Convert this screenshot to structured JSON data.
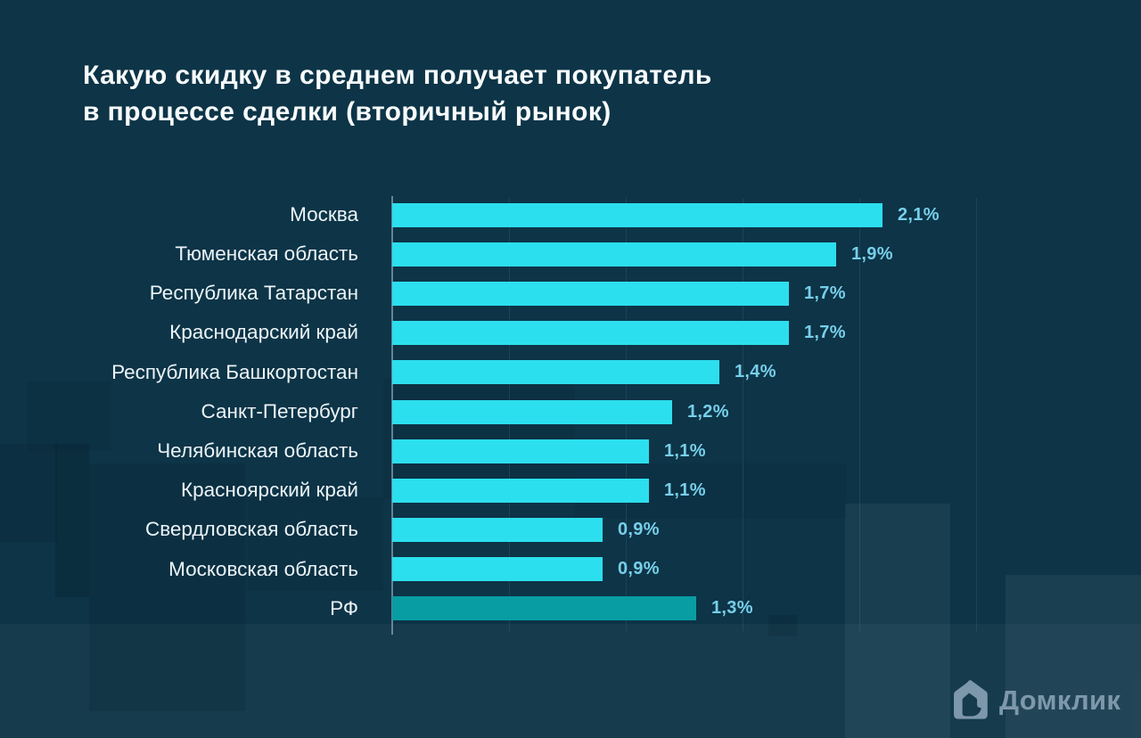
{
  "title": {
    "line1": "Какую скидку в среднем получает покупатель",
    "line2": "в процессе сделки (вторичный рынок)"
  },
  "chart_data": {
    "type": "bar",
    "orientation": "horizontal",
    "title": "Какую скидку в среднем получает покупатель в процессе сделки (вторичный рынок)",
    "categories": [
      "Москва",
      "Тюменская область",
      "Республика Татарстан",
      "Краснодарский край",
      "Республика Башкортостан",
      "Санкт-Петербург",
      "Челябинская область",
      "Красноярский край",
      "Свердловская область",
      "Московская область",
      "РФ"
    ],
    "values": [
      2.1,
      1.9,
      1.7,
      1.7,
      1.4,
      1.2,
      1.1,
      1.1,
      0.9,
      0.9,
      1.3
    ],
    "value_labels": [
      "2,1%",
      "1,9%",
      "1,7%",
      "1,7%",
      "1,4%",
      "1,2%",
      "1,1%",
      "1,1%",
      "0,9%",
      "0,9%",
      "1,3%"
    ],
    "unit": "%",
    "xlim": [
      0,
      2.5
    ],
    "gridline_step": 0.5,
    "grid": true,
    "legend": "none",
    "highlight_category": "РФ",
    "colors": {
      "background": "#0d3447",
      "bar": "#2cdfee",
      "highlight_bar": "#089da3",
      "value_label": "#77cfea",
      "category_label": "#ecf4f7",
      "title_text": "#f8fbfc",
      "logo": "#7e98ab"
    }
  },
  "branding": {
    "logo_text": "Домклик"
  }
}
